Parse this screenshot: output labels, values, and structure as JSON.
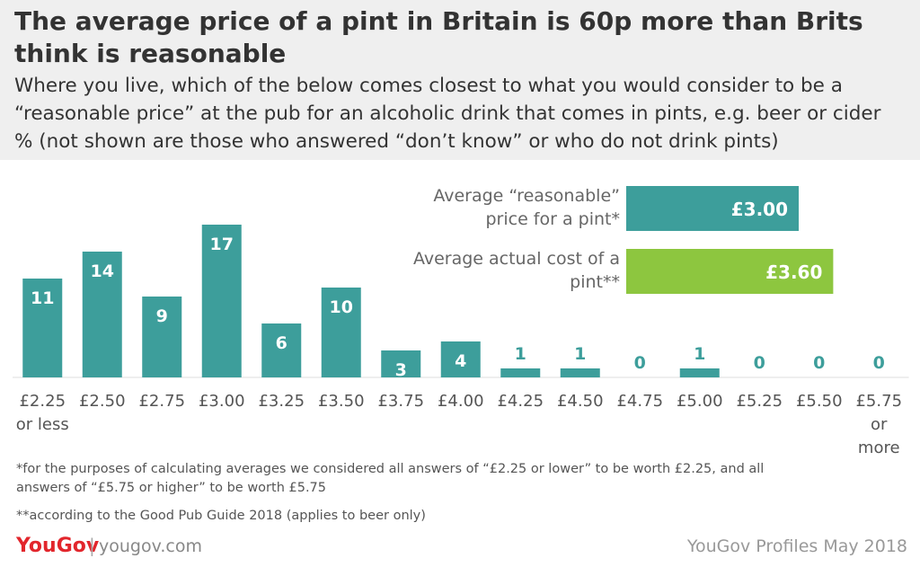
{
  "chart_data": {
    "type": "bar",
    "title": "The average price of a pint in Britain is 60p more than Brits think is reasonable",
    "subtitle": "Where you live, which of the below comes closest to what you would consider to be a “reasonable price” at the pub for an alcoholic drink that comes in pints, e.g. beer or cider",
    "note": "% (not shown are those who answered “don’t know” or who do not drink pints)",
    "categories": [
      "£2.25 or less",
      "£2.50",
      "£2.75",
      "£3.00",
      "£3.25",
      "£3.50",
      "£3.75",
      "£4.00",
      "£4.25",
      "£4.50",
      "£4.75",
      "£5.00",
      "£5.25",
      "£5.50",
      "£5.75 or more"
    ],
    "values": [
      11,
      14,
      9,
      17,
      6,
      10,
      3,
      4,
      1,
      1,
      0,
      1,
      0,
      0,
      0
    ],
    "color": "#3d9e9b",
    "averages": {
      "categories": [
        "Average “reasonable” price for a pint*",
        "Average actual cost of a pint**"
      ],
      "values": [
        3.0,
        3.6
      ],
      "value_labels": [
        "£3.00",
        "£3.60"
      ],
      "colors": [
        "#3d9e9b",
        "#8dc63f"
      ]
    },
    "footnotes": [
      "*for the purposes of calculating averages we considered all answers of “£2.25 or lower” to be worth £2.25, and all answers of “£5.75 or higher” to be worth £5.75",
      "**according to the Good Pub Guide 2018 (applies to beer only)"
    ],
    "brand": "YouGov",
    "website": "yougov.com",
    "source": "YouGov Profiles May 2018"
  }
}
